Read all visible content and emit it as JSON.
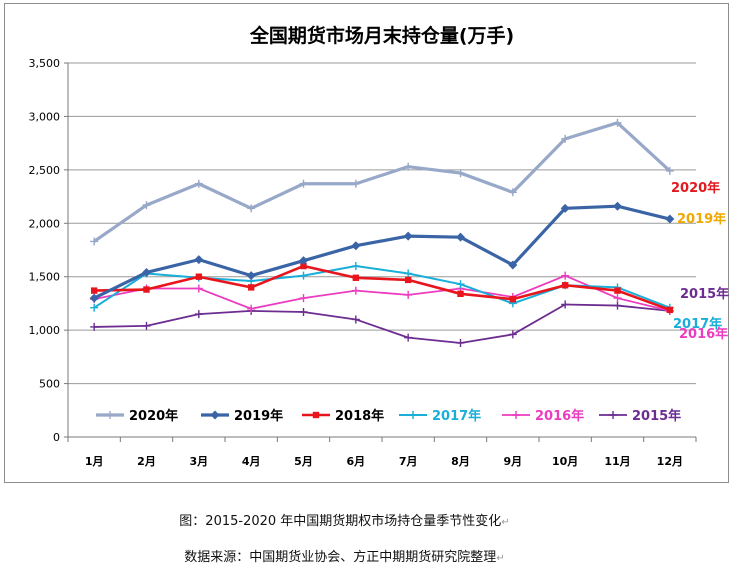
{
  "chart_data": {
    "type": "line",
    "title": "全国期货市场月末持仓量(万手)",
    "xlabel": "",
    "ylabel": "",
    "categories": [
      "1月",
      "2月",
      "3月",
      "4月",
      "5月",
      "6月",
      "7月",
      "8月",
      "9月",
      "10月",
      "11月",
      "12月"
    ],
    "ylim": [
      0,
      3500
    ],
    "yticks": [
      0,
      500,
      1000,
      1500,
      2000,
      2500,
      3000,
      3500
    ],
    "ytick_labels": [
      "0",
      "500",
      "1,000",
      "1,500",
      "2,000",
      "2,500",
      "3,000",
      "3,500"
    ],
    "grid": "horizontal",
    "legend_position": "bottom",
    "series": [
      {
        "name": "2020年",
        "color": "#98a8c8",
        "label_color": "#e0191f",
        "marker": "plus",
        "values": [
          1830,
          2170,
          2370,
          2140,
          2370,
          2370,
          2530,
          2470,
          2290,
          2790,
          2940,
          2490
        ]
      },
      {
        "name": "2019年",
        "color": "#3a64a6",
        "label_color": "#f0a800",
        "marker": "diamond",
        "values": [
          1300,
          1540,
          1660,
          1510,
          1650,
          1790,
          1880,
          1870,
          1610,
          2140,
          2160,
          2040
        ]
      },
      {
        "name": "2018年",
        "color": "#e8161c",
        "label_color": "#e8161c",
        "marker": "square",
        "values": [
          1370,
          1380,
          1500,
          1400,
          1600,
          1490,
          1470,
          1340,
          1290,
          1420,
          1370,
          1190
        ]
      },
      {
        "name": "2017年",
        "color": "#18aed8",
        "label_color": "#18aed8",
        "marker": "plus",
        "values": [
          1210,
          1530,
          1490,
          1460,
          1510,
          1600,
          1530,
          1430,
          1250,
          1420,
          1400,
          1210
        ]
      },
      {
        "name": "2016年",
        "color": "#ec3cc0",
        "label_color": "#ec3cc0",
        "marker": "plus",
        "values": [
          1290,
          1390,
          1390,
          1200,
          1300,
          1370,
          1330,
          1390,
          1310,
          1510,
          1300,
          1180
        ]
      },
      {
        "name": "2015年",
        "color": "#6c2c90",
        "label_color": "#6c2c90",
        "marker": "plus",
        "values": [
          1030,
          1040,
          1150,
          1180,
          1170,
          1100,
          930,
          880,
          960,
          1240,
          1230,
          1180
        ]
      }
    ],
    "end_labels": [
      {
        "text": "2020年",
        "series": "2020年"
      },
      {
        "text": "2019年",
        "series": "2019年"
      },
      {
        "text": "2015年",
        "series": "2015年"
      },
      {
        "text": "2017年",
        "series": "2017年"
      },
      {
        "text": "2016年",
        "series": "2016年"
      }
    ]
  },
  "captions": {
    "figure": "图：2015-2020 年中国期货期权市场持仓量季节性变化",
    "source": "数据来源：中国期货业协会、方正中期期货研究院整理",
    "return_mark": "↵"
  }
}
